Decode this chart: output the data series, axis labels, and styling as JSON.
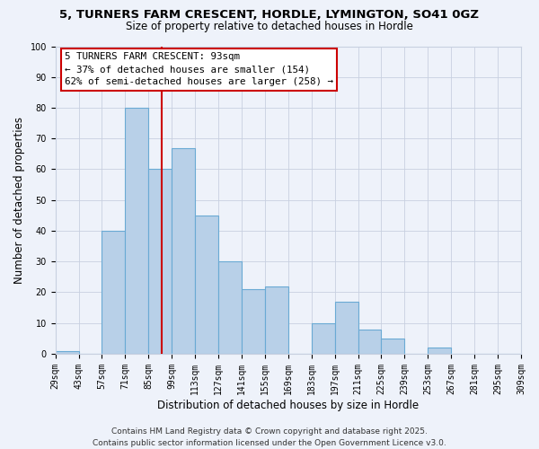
{
  "title1": "5, TURNERS FARM CRESCENT, HORDLE, LYMINGTON, SO41 0GZ",
  "title2": "Size of property relative to detached houses in Hordle",
  "xlabel": "Distribution of detached houses by size in Hordle",
  "ylabel": "Number of detached properties",
  "bar_edges": [
    29,
    43,
    57,
    71,
    85,
    99,
    113,
    127,
    141,
    155,
    169,
    183,
    197,
    211,
    225,
    239,
    253,
    267,
    281,
    295,
    309
  ],
  "bar_heights": [
    1,
    0,
    40,
    80,
    60,
    67,
    45,
    30,
    21,
    22,
    0,
    10,
    17,
    8,
    5,
    0,
    2,
    0,
    0,
    0
  ],
  "bar_color": "#b8d0e8",
  "bar_edge_color": "#6aaad4",
  "bar_linewidth": 0.8,
  "vline_x": 93,
  "vline_color": "#cc0000",
  "vline_linewidth": 1.5,
  "annotation_box_text": "5 TURNERS FARM CRESCENT: 93sqm\n← 37% of detached houses are smaller (154)\n62% of semi-detached houses are larger (258) →",
  "ylim": [
    0,
    100
  ],
  "yticks": [
    0,
    10,
    20,
    30,
    40,
    50,
    60,
    70,
    80,
    90,
    100
  ],
  "tick_labels": [
    "29sqm",
    "43sqm",
    "57sqm",
    "71sqm",
    "85sqm",
    "99sqm",
    "113sqm",
    "127sqm",
    "141sqm",
    "155sqm",
    "169sqm",
    "183sqm",
    "197sqm",
    "211sqm",
    "225sqm",
    "239sqm",
    "253sqm",
    "267sqm",
    "281sqm",
    "295sqm",
    "309sqm"
  ],
  "footer1": "Contains HM Land Registry data © Crown copyright and database right 2025.",
  "footer2": "Contains public sector information licensed under the Open Government Licence v3.0.",
  "bg_color": "#eef2fa",
  "grid_color": "#c8d0e0",
  "title_fontsize": 9.5,
  "subtitle_fontsize": 8.5,
  "axis_label_fontsize": 8.5,
  "tick_fontsize": 7,
  "annotation_fontsize": 7.8,
  "footer_fontsize": 6.5
}
